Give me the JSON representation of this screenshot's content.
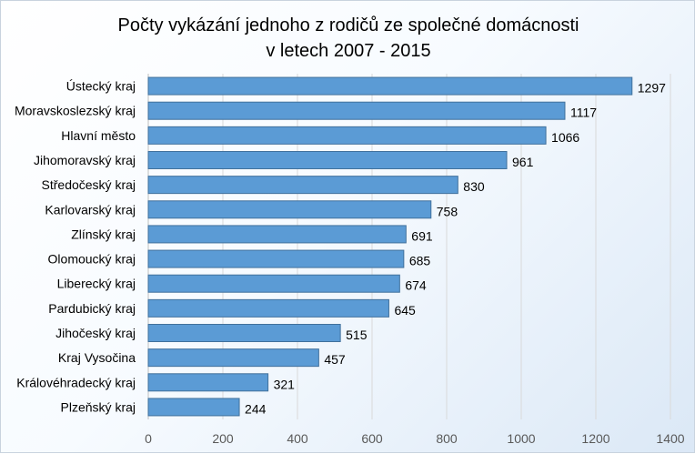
{
  "chart_data": {
    "type": "bar",
    "orientation": "horizontal",
    "title_lines": [
      "Počty vykázání jednoho z rodičů ze společné domácnosti",
      "v letech 2007 - 2015"
    ],
    "categories": [
      "Ústecký kraj",
      "Moravskoslezský kraj",
      "Hlavní město",
      "Jihomoravský kraj",
      "Středočeský kraj",
      "Karlovarský kraj",
      "Zlínský kraj",
      "Olomoucký kraj",
      "Liberecký kraj",
      "Pardubický kraj",
      "Jihočeský kraj",
      "Kraj Vysočina",
      "Královéhradecký kraj",
      "Plzeňský kraj"
    ],
    "values": [
      1297,
      1117,
      1066,
      961,
      830,
      758,
      691,
      685,
      674,
      645,
      515,
      457,
      321,
      244
    ],
    "xlim": [
      0,
      1400
    ],
    "xticks": [
      0,
      200,
      400,
      600,
      800,
      1000,
      1200,
      1400
    ],
    "grid": true,
    "data_labels": true,
    "bar_color": "#5b9bd5",
    "bar_edge_color": "#41719c",
    "grid_color": "#d9d9d9"
  }
}
